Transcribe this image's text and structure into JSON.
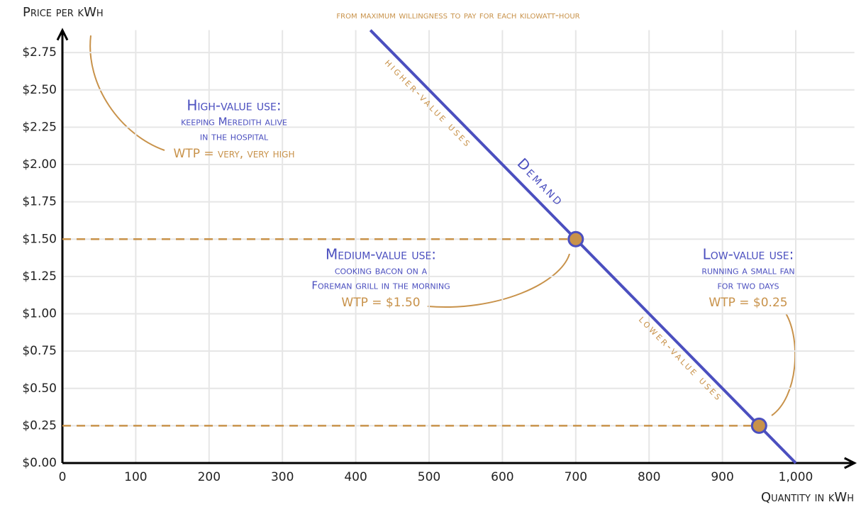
{
  "chart_data": {
    "type": "line",
    "subtitle": "from maximum willingness to pay for each kilowatt-hour",
    "x_label": "Quantity in kWh",
    "y_label": "Price per kWh",
    "xlim": [
      0,
      1080
    ],
    "ylim": [
      0,
      2.9
    ],
    "xticks": [
      0,
      100,
      200,
      300,
      400,
      500,
      600,
      700,
      800,
      900,
      {
        "value": 1000,
        "label": "1,000"
      }
    ],
    "yticks": [
      {
        "value": 0,
        "label": "$0.00"
      },
      {
        "value": 0.25,
        "label": "$0.25"
      },
      {
        "value": 0.5,
        "label": "$0.50"
      },
      {
        "value": 0.75,
        "label": "$0.75"
      },
      {
        "value": 1,
        "label": "$1.00"
      },
      {
        "value": 1.25,
        "label": "$1.25"
      },
      {
        "value": 1.5,
        "label": "$1.50"
      },
      {
        "value": 1.75,
        "label": "$1.75"
      },
      {
        "value": 2,
        "label": "$2.00"
      },
      {
        "value": 2.25,
        "label": "$2.25"
      },
      {
        "value": 2.5,
        "label": "$2.50"
      },
      {
        "value": 2.75,
        "label": "$2.75"
      }
    ],
    "grid": true,
    "series": [
      {
        "name": "Demand",
        "color": "#4b4fbf",
        "x": [
          420,
          1000
        ],
        "values": [
          2.9,
          0
        ]
      }
    ],
    "points": {
      "color": "#c8924a",
      "x": [
        700,
        950
      ],
      "values": [
        1.5,
        0.25
      ]
    },
    "curve_labels": [
      "higher-value uses",
      "lower-value uses"
    ],
    "annotations": [
      {
        "title": "High-value use:",
        "lines": [
          "keeping Meredith alive",
          "in the hospital"
        ],
        "wtp": "WTP = very, very high"
      },
      {
        "title": "Medium-value use:",
        "lines": [
          "cooking bacon on a",
          "Foreman grill in the morning"
        ],
        "wtp": "WTP = $1.50"
      },
      {
        "title": "Low-value use:",
        "lines": [
          "running a small fan",
          "for two days"
        ],
        "wtp": "WTP = $0.25"
      }
    ]
  }
}
